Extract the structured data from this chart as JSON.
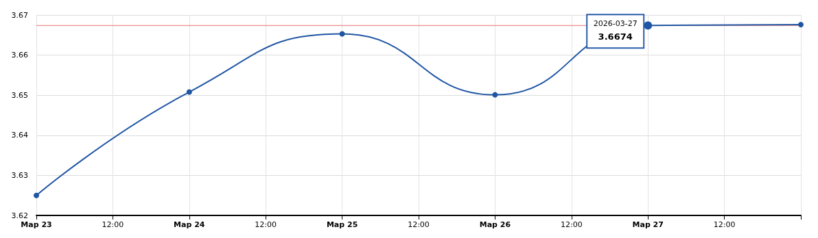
{
  "chart_data": {
    "type": "line",
    "x": [
      "2026-03-23",
      "2026-03-24",
      "2026-03-25",
      "2026-03-26",
      "2026-03-27",
      "2026-03-28"
    ],
    "series": [
      {
        "color": "#1f56a3",
        "values": [
          3.625,
          3.6508,
          3.6653,
          3.6501,
          3.6674,
          3.6676
        ]
      }
    ],
    "xlim": [
      "2026-03-23",
      "2026-03-28"
    ],
    "xticks": [
      {
        "value": "2026-03-23",
        "label": "Мар 23"
      },
      {
        "value": "2026-03-23T12:00",
        "label": "12:00"
      },
      {
        "value": "2026-03-24",
        "label": "Мар 24"
      },
      {
        "value": "2026-03-24T12:00",
        "label": "12:00"
      },
      {
        "value": "2026-03-25",
        "label": "Мар 25"
      },
      {
        "value": "2026-03-25T12:00",
        "label": "12:00"
      },
      {
        "value": "2026-03-26",
        "label": "Мар 26"
      },
      {
        "value": "2026-03-26T12:00",
        "label": "12:00"
      },
      {
        "value": "2026-03-27",
        "label": "Мар 27"
      },
      {
        "value": "2026-03-27T12:00",
        "label": "12:00"
      },
      {
        "value": "2026-03-28",
        "label": null
      }
    ],
    "ylim": [
      3.62,
      3.67
    ],
    "yticks": [
      3.62,
      3.63,
      3.64,
      3.65,
      3.66,
      3.67
    ],
    "ref_lines": [
      {
        "axis": "y",
        "value": 3.6674,
        "color": "#e8706f"
      }
    ],
    "annotations": [
      {
        "text": "2026-03-27",
        "x": "2026-03-27",
        "y": 3.6674
      },
      {
        "text": "3.6674",
        "x": "2026-03-27",
        "y": 3.6674
      }
    ],
    "grid": true,
    "marker": "circle",
    "line_style": "solid"
  }
}
